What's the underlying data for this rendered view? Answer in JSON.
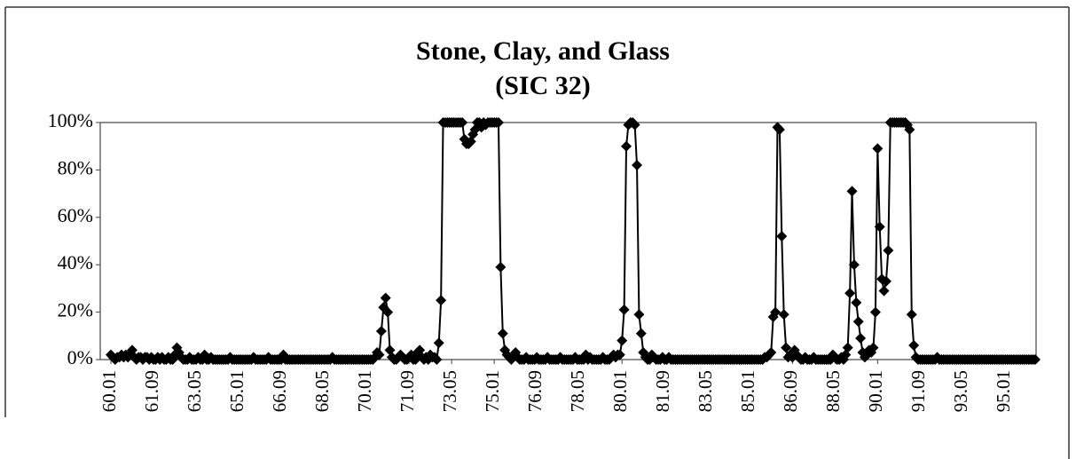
{
  "chart_data": {
    "type": "line",
    "title": "Stone, Clay, and Glass",
    "subtitle": "(SIC 32)",
    "color": "#000000",
    "ylim": [
      0,
      100
    ],
    "yticks": [
      {
        "value": 0,
        "label": "0%"
      },
      {
        "value": 20,
        "label": "20%"
      },
      {
        "value": 40,
        "label": "40%"
      },
      {
        "value": 60,
        "label": "60%"
      },
      {
        "value": 80,
        "label": "80%"
      },
      {
        "value": 100,
        "label": "100%"
      }
    ],
    "categories": [
      "60.01",
      null,
      null,
      null,
      null,
      null,
      null,
      null,
      null,
      null,
      null,
      null,
      null,
      null,
      null,
      null,
      null,
      null,
      null,
      null,
      "61.09",
      null,
      null,
      null,
      null,
      null,
      null,
      null,
      null,
      null,
      null,
      null,
      null,
      null,
      null,
      null,
      null,
      null,
      null,
      null,
      "63.05",
      null,
      null,
      null,
      null,
      null,
      null,
      null,
      null,
      null,
      null,
      null,
      null,
      null,
      null,
      null,
      null,
      null,
      null,
      null,
      "65.01",
      null,
      null,
      null,
      null,
      null,
      null,
      null,
      null,
      null,
      null,
      null,
      null,
      null,
      null,
      null,
      null,
      null,
      null,
      null,
      "66.09",
      null,
      null,
      null,
      null,
      null,
      null,
      null,
      null,
      null,
      null,
      null,
      null,
      null,
      null,
      null,
      null,
      null,
      null,
      null,
      "68.05",
      null,
      null,
      null,
      null,
      null,
      null,
      null,
      null,
      null,
      null,
      null,
      null,
      null,
      null,
      null,
      null,
      null,
      null,
      null,
      "70.01",
      null,
      null,
      null,
      null,
      null,
      null,
      null,
      null,
      null,
      null,
      null,
      null,
      null,
      null,
      null,
      null,
      null,
      null,
      null,
      "71.09",
      null,
      null,
      null,
      null,
      null,
      null,
      null,
      null,
      null,
      null,
      null,
      null,
      null,
      null,
      null,
      null,
      null,
      null,
      null,
      "73.05",
      null,
      null,
      null,
      null,
      null,
      null,
      null,
      null,
      null,
      null,
      null,
      null,
      null,
      null,
      null,
      null,
      null,
      null,
      null,
      "75.01",
      null,
      null,
      null,
      null,
      null,
      null,
      null,
      null,
      null,
      null,
      null,
      null,
      null,
      null,
      null,
      null,
      null,
      null,
      null,
      "76.09",
      null,
      null,
      null,
      null,
      null,
      null,
      null,
      null,
      null,
      null,
      null,
      null,
      null,
      null,
      null,
      null,
      null,
      null,
      null,
      "78.05",
      null,
      null,
      null,
      null,
      null,
      null,
      null,
      null,
      null,
      null,
      null,
      null,
      null,
      null,
      null,
      null,
      null,
      null,
      null,
      "80.01",
      null,
      null,
      null,
      null,
      null,
      null,
      null,
      null,
      null,
      null,
      null,
      null,
      null,
      null,
      null,
      null,
      null,
      null,
      null,
      "81.09",
      null,
      null,
      null,
      null,
      null,
      null,
      null,
      null,
      null,
      null,
      null,
      null,
      null,
      null,
      null,
      null,
      null,
      null,
      null,
      "83.05",
      null,
      null,
      null,
      null,
      null,
      null,
      null,
      null,
      null,
      null,
      null,
      null,
      null,
      null,
      null,
      null,
      null,
      null,
      null,
      "85.01",
      null,
      null,
      null,
      null,
      null,
      null,
      null,
      null,
      null,
      null,
      null,
      null,
      null,
      null,
      null,
      null,
      null,
      null,
      null,
      "86.09",
      null,
      null,
      null,
      null,
      null,
      null,
      null,
      null,
      null,
      null,
      null,
      null,
      null,
      null,
      null,
      null,
      null,
      null,
      null,
      "88.05",
      null,
      null,
      null,
      null,
      null,
      null,
      null,
      null,
      null,
      null,
      null,
      null,
      null,
      null,
      null,
      null,
      null,
      null,
      null,
      "90.01",
      null,
      null,
      null,
      null,
      null,
      null,
      null,
      null,
      null,
      null,
      null,
      null,
      null,
      null,
      null,
      null,
      null,
      null,
      null,
      "91.09",
      null,
      null,
      null,
      null,
      null,
      null,
      null,
      null,
      null,
      null,
      null,
      null,
      null,
      null,
      null,
      null,
      null,
      null,
      null,
      "93.05",
      null,
      null,
      null,
      null,
      null,
      null,
      null,
      null,
      null,
      null,
      null,
      null,
      null,
      null,
      null,
      null,
      null,
      null,
      null,
      "95.01",
      null,
      null,
      null,
      null,
      null,
      null,
      null,
      null,
      null,
      null,
      null,
      null,
      null,
      null
    ],
    "values": [
      2,
      1,
      0,
      1,
      1,
      2,
      1,
      2,
      1,
      2,
      4,
      1,
      0,
      1,
      1,
      0,
      1,
      1,
      0,
      1,
      0,
      0,
      1,
      0,
      1,
      0,
      0,
      1,
      0,
      0,
      2,
      5,
      3,
      1,
      0,
      0,
      0,
      1,
      0,
      0,
      0,
      1,
      0,
      0,
      2,
      0,
      0,
      1,
      0,
      0,
      0,
      0,
      0,
      0,
      0,
      0,
      1,
      0,
      0,
      0,
      0,
      0,
      0,
      0,
      0,
      0,
      0,
      1,
      0,
      0,
      0,
      0,
      0,
      0,
      1,
      0,
      0,
      0,
      0,
      0,
      0,
      2,
      0,
      0,
      0,
      0,
      0,
      0,
      0,
      0,
      0,
      0,
      0,
      0,
      0,
      0,
      0,
      0,
      0,
      0,
      0,
      0,
      0,
      0,
      1,
      0,
      0,
      0,
      0,
      0,
      0,
      0,
      0,
      0,
      0,
      0,
      0,
      0,
      0,
      0,
      0,
      0,
      0,
      0,
      1,
      3,
      2,
      12,
      22,
      26,
      20,
      4,
      1,
      0,
      0,
      1,
      2,
      1,
      0,
      0,
      1,
      2,
      0,
      0,
      3,
      4,
      1,
      0,
      1,
      0,
      2,
      1,
      1,
      0,
      7,
      25,
      100,
      100,
      100,
      100,
      100,
      100,
      100,
      100,
      100,
      100,
      93,
      91,
      91,
      92,
      95,
      97,
      100,
      100,
      98,
      100,
      99,
      100,
      100,
      100,
      100,
      100,
      100,
      39,
      11,
      4,
      2,
      1,
      0,
      1,
      3,
      1,
      0,
      0,
      0,
      1,
      0,
      0,
      0,
      0,
      1,
      0,
      0,
      0,
      0,
      1,
      0,
      0,
      0,
      0,
      0,
      1,
      0,
      0,
      0,
      0,
      0,
      0,
      1,
      0,
      0,
      0,
      0,
      2,
      0,
      1,
      0,
      0,
      0,
      0,
      0,
      1,
      0,
      0,
      0,
      1,
      2,
      1,
      2,
      2,
      8,
      21,
      90,
      99,
      100,
      100,
      99,
      82,
      19,
      11,
      3,
      1,
      0,
      0,
      2,
      1,
      0,
      0,
      0,
      1,
      0,
      0,
      1,
      0,
      0,
      0,
      0,
      0,
      0,
      0,
      0,
      0,
      0,
      0,
      0,
      0,
      0,
      0,
      0,
      0,
      0,
      0,
      0,
      0,
      0,
      0,
      0,
      0,
      0,
      0,
      0,
      0,
      0,
      0,
      0,
      0,
      0,
      0,
      0,
      0,
      0,
      0,
      0,
      0,
      0,
      0,
      0,
      1,
      1,
      2,
      3,
      18,
      20,
      98,
      97,
      52,
      19,
      5,
      1,
      2,
      1,
      4,
      2,
      1,
      0,
      0,
      1,
      0,
      0,
      0,
      1,
      0,
      0,
      0,
      0,
      0,
      0,
      0,
      0,
      2,
      1,
      0,
      0,
      1,
      0,
      2,
      5,
      28,
      71,
      40,
      24,
      16,
      9,
      3,
      1,
      2,
      4,
      3,
      5,
      20,
      89,
      56,
      34,
      29,
      33,
      46,
      100,
      100,
      100,
      100,
      100,
      100,
      100,
      100,
      99,
      97,
      19,
      6,
      1,
      0,
      0,
      0,
      0,
      0,
      0,
      0,
      0,
      0,
      1,
      0,
      0,
      0,
      0,
      0,
      0,
      0,
      0,
      0,
      0,
      0,
      0,
      0,
      0,
      0,
      0,
      0,
      0,
      0,
      0,
      0,
      0,
      0,
      0,
      0,
      0,
      0,
      0,
      0,
      0,
      0,
      0,
      0,
      0,
      0,
      0,
      0,
      0,
      0,
      0,
      0,
      0,
      0,
      0,
      0,
      0
    ]
  }
}
